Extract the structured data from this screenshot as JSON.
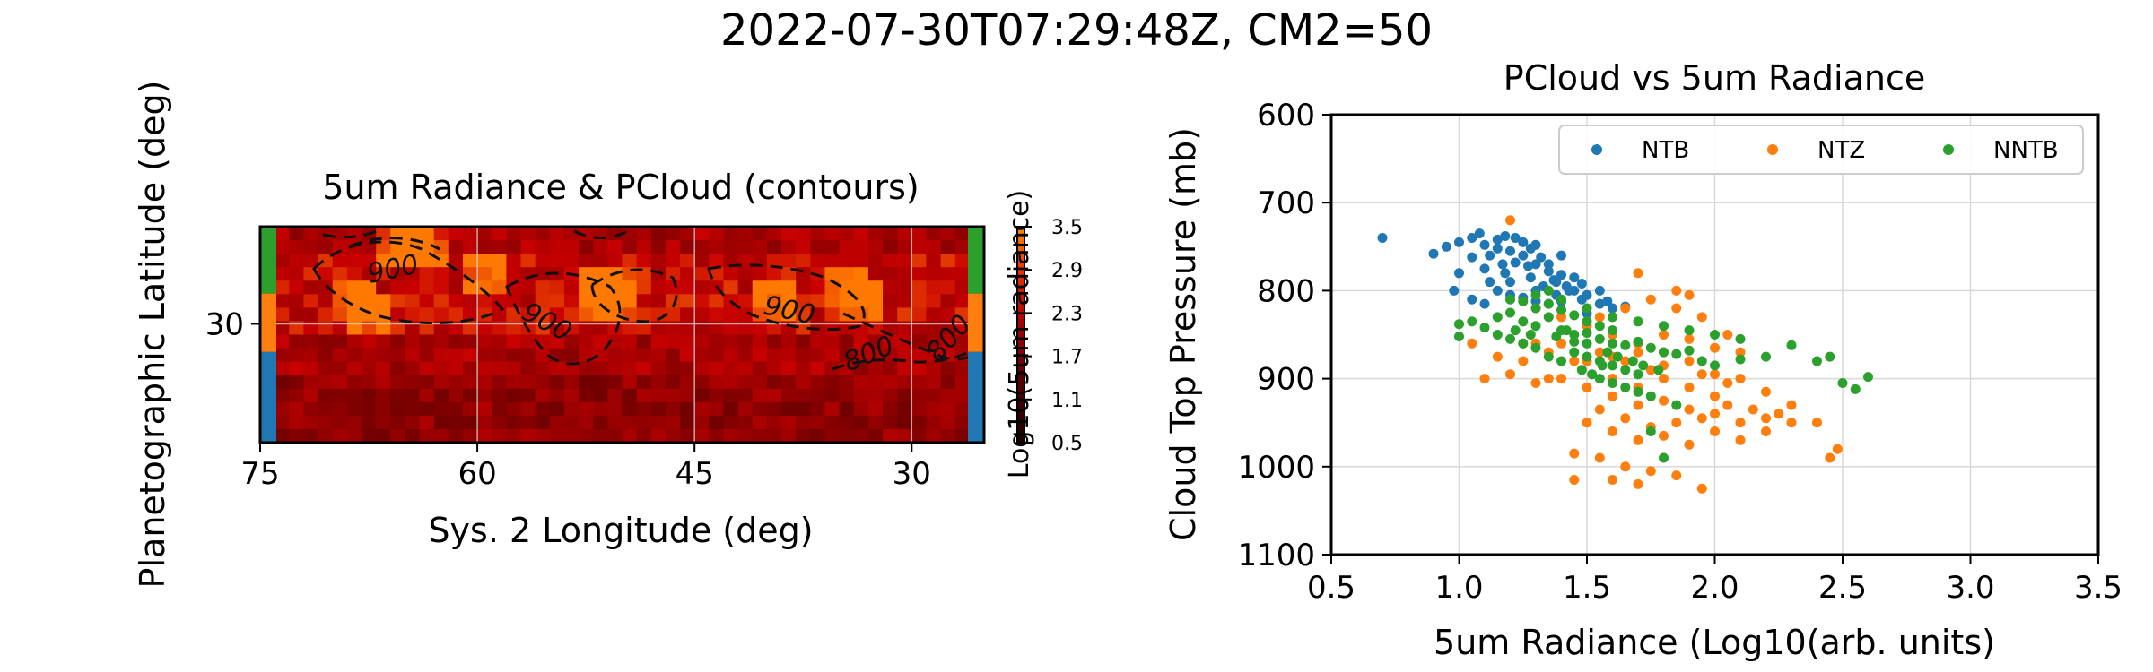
{
  "figure_title": "2022-07-30T07:29:48Z, CM2=50",
  "chart_data": [
    {
      "type": "heatmap",
      "title": "5um Radiance & PCloud (contours)",
      "xlabel": "Sys. 2 Longitude (deg)",
      "ylabel": "Planetographic Latitude (deg)",
      "xlim": [
        75,
        25
      ],
      "ylim": [
        24.5,
        34.5
      ],
      "xticks": [
        "75",
        "60",
        "45",
        "30"
      ],
      "yticks": [
        "30"
      ],
      "grid": true,
      "colorbar": {
        "label": "Log10(5um radiance)",
        "ticks": [
          "3.5",
          "2.9",
          "2.3",
          "1.7",
          "1.1",
          "0.5"
        ],
        "range": [
          0.5,
          3.5
        ]
      },
      "contour_labels": [
        "900",
        "900",
        "900",
        "800",
        "800"
      ],
      "band_colors": [
        "#2ca02c",
        "#ff7f0e",
        "#1f77b4"
      ]
    },
    {
      "type": "scatter",
      "title": "PCloud vs 5um Radiance",
      "xlabel": "5um Radiance (Log10(arb. units)",
      "ylabel": "Cloud Top Pressure (mb)",
      "xlim": [
        0.5,
        3.5
      ],
      "ylim": [
        1100,
        600
      ],
      "xticks": [
        "0.5",
        "1.0",
        "1.5",
        "2.0",
        "2.5",
        "3.0",
        "3.5"
      ],
      "yticks": [
        "600",
        "700",
        "800",
        "900",
        "1000",
        "1100"
      ],
      "grid": true,
      "legend_position": "top-right",
      "series": [
        {
          "name": "NTB",
          "color": "#1f77b4",
          "points": [
            [
              0.7,
              740
            ],
            [
              0.9,
              758
            ],
            [
              0.95,
              750
            ],
            [
              1.0,
              745
            ],
            [
              1.05,
              740
            ],
            [
              1.08,
              735
            ],
            [
              1.1,
              748
            ],
            [
              1.12,
              760
            ],
            [
              1.15,
              742
            ],
            [
              1.18,
              738
            ],
            [
              1.2,
              755
            ],
            [
              1.22,
              768
            ],
            [
              1.25,
              745
            ],
            [
              1.28,
              752
            ],
            [
              1.3,
              770
            ],
            [
              1.32,
              762
            ],
            [
              1.35,
              778
            ],
            [
              1.38,
              790
            ],
            [
              1.4,
              782
            ],
            [
              1.42,
              795
            ],
            [
              1.45,
              800
            ],
            [
              1.48,
              810
            ],
            [
              1.5,
              805
            ],
            [
              1.55,
              815
            ],
            [
              1.58,
              812
            ],
            [
              1.6,
              820
            ],
            [
              1.65,
              818
            ],
            [
              1.1,
              775
            ],
            [
              1.2,
              790
            ],
            [
              1.3,
              800
            ],
            [
              1.4,
              812
            ],
            [
              1.5,
              826
            ],
            [
              1.15,
              800
            ],
            [
              1.25,
              808
            ],
            [
              1.35,
              815
            ],
            [
              1.0,
              780
            ],
            [
              0.98,
              800
            ],
            [
              1.05,
              810
            ],
            [
              1.12,
              790
            ],
            [
              1.18,
              780
            ],
            [
              1.28,
              785
            ],
            [
              1.33,
              795
            ],
            [
              1.43,
              800
            ],
            [
              1.05,
              762
            ],
            [
              1.15,
              752
            ],
            [
              1.25,
              760
            ],
            [
              1.35,
              770
            ],
            [
              1.45,
              785
            ],
            [
              1.2,
              805
            ],
            [
              1.3,
              812
            ],
            [
              1.1,
              815
            ],
            [
              1.38,
              805
            ],
            [
              1.48,
              792
            ],
            [
              1.55,
              800
            ],
            [
              1.22,
              740
            ],
            [
              1.3,
              748
            ],
            [
              1.4,
              760
            ],
            [
              1.17,
              770
            ],
            [
              1.27,
              772
            ],
            [
              1.37,
              788
            ]
          ]
        },
        {
          "name": "NTZ",
          "color": "#ff7f0e",
          "points": [
            [
              1.2,
              720
            ],
            [
              1.7,
              780
            ],
            [
              1.85,
              800
            ],
            [
              1.9,
              805
            ],
            [
              1.3,
              820
            ],
            [
              1.4,
              830
            ],
            [
              1.5,
              840
            ],
            [
              1.6,
              850
            ],
            [
              1.7,
              860
            ],
            [
              1.8,
              850
            ],
            [
              1.9,
              855
            ],
            [
              2.0,
              865
            ],
            [
              2.1,
              870
            ],
            [
              1.1,
              900
            ],
            [
              1.2,
              895
            ],
            [
              1.3,
              905
            ],
            [
              1.4,
              900
            ],
            [
              1.5,
              910
            ],
            [
              1.6,
              920
            ],
            [
              1.7,
              930
            ],
            [
              1.8,
              925
            ],
            [
              1.9,
              935
            ],
            [
              2.0,
              940
            ],
            [
              2.1,
              950
            ],
            [
              2.2,
              945
            ],
            [
              2.3,
              950
            ],
            [
              1.5,
              950
            ],
            [
              1.6,
              960
            ],
            [
              1.7,
              970
            ],
            [
              1.8,
              965
            ],
            [
              1.9,
              975
            ],
            [
              2.0,
              960
            ],
            [
              2.1,
              970
            ],
            [
              2.2,
              960
            ],
            [
              1.45,
              985
            ],
            [
              1.55,
              990
            ],
            [
              1.65,
              1000
            ],
            [
              1.75,
              1005
            ],
            [
              1.85,
              1010
            ],
            [
              1.95,
              1025
            ],
            [
              1.45,
              1015
            ],
            [
              1.6,
              1015
            ],
            [
              1.7,
              1020
            ],
            [
              2.45,
              990
            ],
            [
              2.48,
              980
            ],
            [
              2.4,
              950
            ],
            [
              2.3,
              930
            ],
            [
              2.2,
              915
            ],
            [
              2.1,
              900
            ],
            [
              2.0,
              895
            ],
            [
              1.9,
              880
            ],
            [
              1.8,
              870
            ],
            [
              1.75,
              890
            ],
            [
              1.65,
              880
            ],
            [
              1.55,
              870
            ],
            [
              1.45,
              880
            ],
            [
              1.35,
              870
            ],
            [
              1.25,
              880
            ],
            [
              1.15,
              875
            ],
            [
              1.05,
              860
            ],
            [
              1.3,
              860
            ],
            [
              1.4,
              860
            ],
            [
              1.6,
              900
            ],
            [
              1.7,
              910
            ],
            [
              1.8,
              900
            ],
            [
              1.9,
              910
            ],
            [
              2.0,
              920
            ],
            [
              2.05,
              930
            ],
            [
              1.55,
              935
            ],
            [
              1.65,
              945
            ],
            [
              1.75,
              955
            ],
            [
              1.85,
              950
            ],
            [
              1.95,
              945
            ],
            [
              2.15,
              935
            ],
            [
              2.25,
              940
            ],
            [
              1.5,
              880
            ],
            [
              1.6,
              875
            ],
            [
              1.7,
              870
            ],
            [
              1.8,
              885
            ],
            [
              1.95,
              895
            ],
            [
              2.05,
              905
            ],
            [
              1.75,
              810
            ],
            [
              1.65,
              820
            ],
            [
              1.55,
              830
            ],
            [
              1.85,
              820
            ],
            [
              1.95,
              830
            ],
            [
              2.05,
              850
            ],
            [
              1.25,
              860
            ],
            [
              1.35,
              900
            ]
          ]
        },
        {
          "name": "NNTB",
          "color": "#2ca02c",
          "points": [
            [
              1.0,
              838
            ],
            [
              1.0,
              852
            ],
            [
              1.05,
              835
            ],
            [
              1.1,
              842
            ],
            [
              1.15,
              830
            ],
            [
              1.2,
              825
            ],
            [
              1.25,
              835
            ],
            [
              1.3,
              840
            ],
            [
              1.35,
              830
            ],
            [
              1.4,
              845
            ],
            [
              1.45,
              850
            ],
            [
              1.5,
              848
            ],
            [
              1.55,
              855
            ],
            [
              1.6,
              860
            ],
            [
              1.65,
              862
            ],
            [
              1.7,
              858
            ],
            [
              1.75,
              865
            ],
            [
              1.8,
              870
            ],
            [
              1.85,
              872
            ],
            [
              1.9,
              868
            ],
            [
              1.95,
              880
            ],
            [
              2.0,
              885
            ],
            [
              2.1,
              878
            ],
            [
              2.2,
              875
            ],
            [
              2.3,
              862
            ],
            [
              2.4,
              880
            ],
            [
              2.45,
              875
            ],
            [
              2.5,
              905
            ],
            [
              2.55,
              912
            ],
            [
              2.6,
              898
            ],
            [
              1.2,
              810
            ],
            [
              1.25,
              812
            ],
            [
              1.3,
              820
            ],
            [
              1.35,
              815
            ],
            [
              1.4,
              822
            ],
            [
              1.45,
              828
            ],
            [
              1.5,
              835
            ],
            [
              1.55,
              840
            ],
            [
              1.6,
              845
            ],
            [
              1.45,
              870
            ],
            [
              1.5,
              875
            ],
            [
              1.55,
              880
            ],
            [
              1.6,
              885
            ],
            [
              1.65,
              890
            ],
            [
              1.7,
              895
            ],
            [
              1.55,
              900
            ],
            [
              1.6,
              905
            ],
            [
              1.65,
              910
            ],
            [
              1.7,
              915
            ],
            [
              1.75,
              920
            ],
            [
              1.4,
              880
            ],
            [
              1.35,
              875
            ],
            [
              1.3,
              865
            ],
            [
              1.25,
              860
            ],
            [
              1.2,
              855
            ],
            [
              1.15,
              850
            ],
            [
              1.3,
              805
            ],
            [
              1.35,
              800
            ],
            [
              1.4,
              810
            ],
            [
              1.5,
              820
            ],
            [
              1.6,
              830
            ],
            [
              1.7,
              835
            ],
            [
              1.8,
              840
            ],
            [
              1.9,
              845
            ],
            [
              2.0,
              850
            ],
            [
              2.1,
              855
            ],
            [
              1.75,
              960
            ],
            [
              1.8,
              990
            ],
            [
              1.85,
              930
            ],
            [
              1.5,
              860
            ],
            [
              1.45,
              858
            ],
            [
              1.42,
              845
            ],
            [
              1.38,
              852
            ],
            [
              1.28,
              850
            ],
            [
              1.22,
              845
            ],
            [
              1.58,
              870
            ],
            [
              1.62,
              875
            ],
            [
              1.68,
              880
            ],
            [
              1.72,
              885
            ],
            [
              1.78,
              890
            ],
            [
              1.48,
              890
            ],
            [
              1.52,
              895
            ],
            [
              1.56,
              885
            ]
          ]
        }
      ]
    }
  ]
}
